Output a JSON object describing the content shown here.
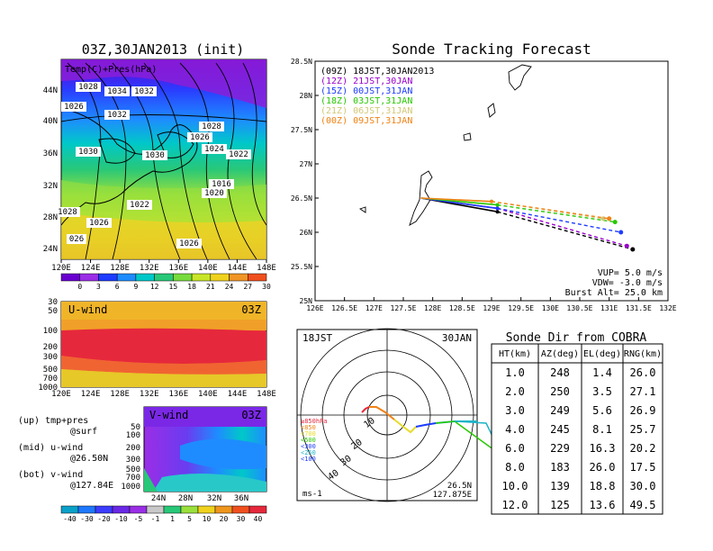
{
  "chart_data": [
    {
      "type": "heatmap",
      "panel": "surface-map",
      "title": "03Z,30JAN2013 (init)",
      "overlay_label": "Temp(C)+Pres(hPa)",
      "x_ticks": [
        "120E",
        "124E",
        "128E",
        "132E",
        "136E",
        "140E",
        "144E",
        "148E"
      ],
      "y_ticks": [
        "44N",
        "40N",
        "36N",
        "32N",
        "28N",
        "24N"
      ],
      "isobar_labels": [
        "1028",
        "1034",
        "1032",
        "1026",
        "1032",
        "1028",
        "1026",
        "1030",
        "1030",
        "1024",
        "1022",
        "1016",
        "1020",
        "1022",
        "1028",
        "026",
        "1026",
        "1026"
      ],
      "colorbar": [
        "0",
        "3",
        "6",
        "9",
        "12",
        "15",
        "18",
        "21",
        "24",
        "27",
        "30"
      ],
      "colors": [
        "#6a00d0",
        "#9a2ee6",
        "#1e3cff",
        "#1e8cff",
        "#00c8c8",
        "#28c878",
        "#78dc3c",
        "#c8e628",
        "#f0d21e",
        "#f09628",
        "#f0501e"
      ]
    },
    {
      "type": "heatmap",
      "panel": "u-wind",
      "title": "U-wind",
      "time": "03Z",
      "y_ticks": [
        "30",
        "50",
        "100",
        "200",
        "300",
        "500",
        "700",
        "1000"
      ],
      "x_ticks": [
        "120E",
        "124E",
        "128E",
        "132E",
        "136E",
        "140E",
        "144E",
        "148E"
      ]
    },
    {
      "type": "heatmap",
      "panel": "v-wind",
      "title": "V-wind",
      "time": "03Z",
      "y_ticks": [
        "50",
        "100",
        "200",
        "300",
        "500",
        "700",
        "1000"
      ],
      "x_ticks": [
        "24N",
        "28N",
        "32N",
        "36N"
      ],
      "colorbar": [
        "-40",
        "-30",
        "-20",
        "-10",
        "-5",
        "-1",
        "1",
        "5",
        "10",
        "20",
        "30",
        "40"
      ]
    },
    {
      "type": "line",
      "panel": "sonde-tracking",
      "title": "Sonde Tracking Forecast",
      "x_ticks": [
        "126E",
        "126.5E",
        "127E",
        "127.5E",
        "128E",
        "128.5E",
        "129E",
        "129.5E",
        "130E",
        "130.5E",
        "131E",
        "131.5E",
        "132E"
      ],
      "y_ticks": [
        "28.5N",
        "28N",
        "27.5N",
        "27N",
        "26.5N",
        "26N",
        "25.5N",
        "25N"
      ],
      "xlim": [
        126,
        132
      ],
      "ylim": [
        25,
        28.5
      ],
      "series": [
        {
          "name": "(09Z)  18JST,30JAN2013",
          "color": "#000000",
          "points": [
            [
              127.8,
              26.5
            ],
            [
              129.1,
              26.3
            ],
            [
              131.4,
              25.75
            ]
          ]
        },
        {
          "name": "(12Z)  21JST,30JAN",
          "color": "#9900cc",
          "points": [
            [
              127.8,
              26.5
            ],
            [
              129.1,
              26.35
            ],
            [
              131.3,
              25.8
            ]
          ]
        },
        {
          "name": "(15Z)  00JST,31JAN",
          "color": "#1e3cff",
          "points": [
            [
              127.8,
              26.5
            ],
            [
              129.1,
              26.35
            ],
            [
              131.2,
              26.0
            ]
          ]
        },
        {
          "name": "(18Z)  03JST,31JAN",
          "color": "#28c800",
          "points": [
            [
              127.8,
              26.5
            ],
            [
              129.1,
              26.4
            ],
            [
              131.1,
              26.15
            ]
          ]
        },
        {
          "name": "(21Z)  06JST,31JAN",
          "color": "#d2c878",
          "points": [
            [
              127.8,
              26.5
            ],
            [
              129.0,
              26.45
            ],
            [
              130.9,
              26.2
            ]
          ]
        },
        {
          "name": "(00Z)  09JST,31JAN",
          "color": "#f08214",
          "points": [
            [
              127.8,
              26.5
            ],
            [
              129.0,
              26.45
            ],
            [
              131.0,
              26.2
            ]
          ]
        }
      ],
      "params": {
        "vup": "VUP=  5.0  m/s",
        "vdw": "VDW= -3.0  m/s",
        "burst": "Burst Alt=  25.0  km"
      }
    },
    {
      "type": "scatter",
      "panel": "polar-direction",
      "left_label": "18JST",
      "right_label": "30JAN",
      "unit_label": "ms-1",
      "lat_label": "26.5N",
      "lon_label": "127.875E",
      "ring_labels": [
        "10",
        "20",
        "30",
        "40"
      ],
      "level_legend": [
        "≥850hPa",
        "<850",
        "<700",
        "<500",
        "<300",
        "<250",
        "<100"
      ]
    },
    {
      "type": "table",
      "panel": "sonde-direction",
      "title": "Sonde Dir from COBRA",
      "columns": [
        "HT(km)",
        "AZ(deg)",
        "EL(deg)",
        "RNG(km)"
      ],
      "rows": [
        [
          "1.0",
          "248",
          "1.4",
          "26.0"
        ],
        [
          "2.0",
          "250",
          "3.5",
          "27.1"
        ],
        [
          "3.0",
          "249",
          "5.6",
          "26.9"
        ],
        [
          "4.0",
          "245",
          "8.1",
          "25.7"
        ],
        [
          "6.0",
          "229",
          "16.3",
          "20.2"
        ],
        [
          "8.0",
          "183",
          "26.0",
          "17.5"
        ],
        [
          "10.0",
          "139",
          "18.8",
          "30.0"
        ],
        [
          "12.0",
          "125",
          "13.6",
          "49.5"
        ]
      ]
    }
  ],
  "notes": {
    "up": "(up) tmp+pres",
    "up_sub": "@surf",
    "mid": "(mid) u-wind",
    "mid_sub": "@26.50N",
    "bot": "(bot) v-wind",
    "bot_sub": "@127.84E"
  }
}
